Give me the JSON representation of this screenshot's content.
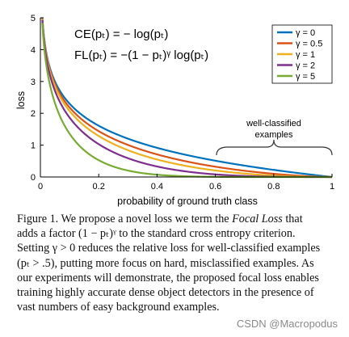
{
  "chart_data": {
    "type": "line",
    "xlabel": "probability of ground truth class",
    "ylabel": "loss",
    "xlim": [
      0,
      1
    ],
    "ylim": [
      0,
      5
    ],
    "xticks": [
      "0",
      "0.2",
      "0.4",
      "0.6",
      "0.8",
      "1"
    ],
    "yticks": [
      "0",
      "1",
      "2",
      "3",
      "4",
      "5"
    ],
    "grid": false,
    "legend_position": "top-right",
    "series": [
      {
        "name": "γ = 0",
        "gamma": 0,
        "color": "#0072BD"
      },
      {
        "name": "γ = 0.5",
        "gamma": 0.5,
        "color": "#D95319"
      },
      {
        "name": "γ = 1",
        "gamma": 1,
        "color": "#EDB120"
      },
      {
        "name": "γ = 2",
        "gamma": 2,
        "color": "#7E2F8E"
      },
      {
        "name": "γ = 5",
        "gamma": 5,
        "color": "#77AC30"
      }
    ],
    "equations": {
      "ce": "CE(pₜ) = − log(pₜ)",
      "fl": "FL(pₜ) = −(1 − pₜ)ᵞ log(pₜ)"
    },
    "annotation": {
      "line1": "well-classified",
      "line2": "examples",
      "x_range": [
        0.6,
        1
      ]
    }
  },
  "caption": {
    "line1_a": "Figure 1. We propose a novel loss we term the ",
    "line1_em": "Focal Loss",
    "line1_b": " that",
    "line2": "adds a factor (1 − pₜ)ᵞ to the standard cross entropy criterion.",
    "line3": "Setting γ > 0 reduces the relative loss for well-classified examples",
    "line4": "(pₜ > .5), putting more focus on hard, misclassified examples. As",
    "line5": "our experiments will demonstrate, the proposed focal loss enables",
    "line6": "training highly accurate dense object detectors in the presence of",
    "line7": "vast numbers of easy background examples."
  },
  "watermark": "CSDN @Macropodus"
}
